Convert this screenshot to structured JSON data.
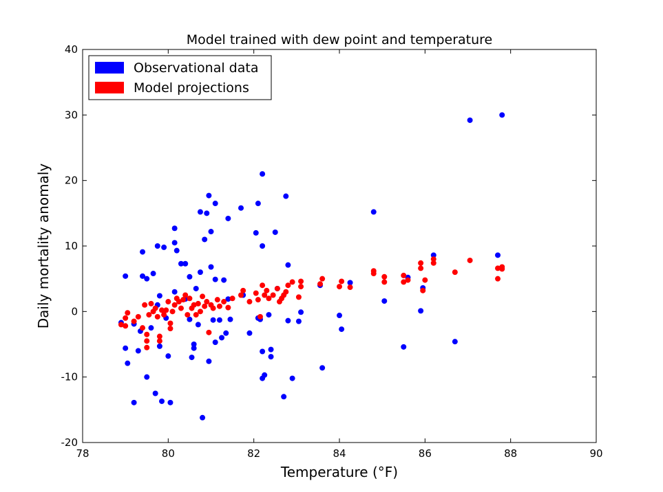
{
  "chart_data": {
    "type": "scatter",
    "title": "Model trained with dew point and temperature",
    "xlabel": "Temperature (°F)",
    "ylabel": "Daily mortality anomaly",
    "xlim": [
      78,
      90
    ],
    "ylim": [
      -20,
      40
    ],
    "xticks": [
      78,
      80,
      82,
      84,
      86,
      88,
      90
    ],
    "yticks": [
      -20,
      -10,
      0,
      10,
      20,
      30,
      40
    ],
    "grid": false,
    "legend_position": "upper-left",
    "series": [
      {
        "name": "Observational data",
        "color": "#0000ff",
        "points": [
          [
            78.9,
            -1.7
          ],
          [
            79.0,
            5.4
          ],
          [
            79.0,
            -5.6
          ],
          [
            79.05,
            -7.9
          ],
          [
            79.2,
            -13.9
          ],
          [
            79.2,
            -1.9
          ],
          [
            79.3,
            -6.0
          ],
          [
            79.35,
            -3.0
          ],
          [
            79.4,
            9.1
          ],
          [
            79.4,
            5.4
          ],
          [
            79.5,
            5.0
          ],
          [
            79.5,
            -10.0
          ],
          [
            79.6,
            -2.5
          ],
          [
            79.65,
            5.8
          ],
          [
            79.7,
            -12.5
          ],
          [
            79.75,
            10.0
          ],
          [
            79.75,
            1.0
          ],
          [
            79.8,
            2.4
          ],
          [
            79.8,
            -5.3
          ],
          [
            79.85,
            -13.7
          ],
          [
            79.9,
            9.8
          ],
          [
            79.95,
            -1.0
          ],
          [
            80.0,
            -6.8
          ],
          [
            80.05,
            -13.9
          ],
          [
            80.15,
            12.7
          ],
          [
            80.15,
            10.5
          ],
          [
            80.15,
            3.0
          ],
          [
            80.2,
            9.3
          ],
          [
            80.3,
            7.3
          ],
          [
            80.4,
            7.3
          ],
          [
            80.4,
            1.9
          ],
          [
            80.5,
            5.3
          ],
          [
            80.5,
            -1.2
          ],
          [
            80.55,
            -7.0
          ],
          [
            80.6,
            -5.0
          ],
          [
            80.6,
            -5.6
          ],
          [
            80.65,
            3.5
          ],
          [
            80.7,
            -2.0
          ],
          [
            80.75,
            15.2
          ],
          [
            80.75,
            6.0
          ],
          [
            80.8,
            -16.2
          ],
          [
            80.85,
            11.0
          ],
          [
            80.9,
            15.0
          ],
          [
            80.95,
            17.7
          ],
          [
            80.95,
            -7.6
          ],
          [
            81.0,
            12.2
          ],
          [
            81.0,
            6.8
          ],
          [
            81.05,
            -1.3
          ],
          [
            81.1,
            16.5
          ],
          [
            81.1,
            4.9
          ],
          [
            81.1,
            -4.7
          ],
          [
            81.2,
            -1.3
          ],
          [
            81.25,
            -4.0
          ],
          [
            81.3,
            4.8
          ],
          [
            81.35,
            -3.3
          ],
          [
            81.4,
            14.2
          ],
          [
            81.4,
            1.9
          ],
          [
            81.45,
            -1.2
          ],
          [
            81.7,
            15.8
          ],
          [
            81.75,
            2.5
          ],
          [
            81.9,
            -3.3
          ],
          [
            82.05,
            12.0
          ],
          [
            82.1,
            16.5
          ],
          [
            82.1,
            -1.0
          ],
          [
            82.15,
            -1.2
          ],
          [
            82.2,
            21.0
          ],
          [
            82.2,
            10.0
          ],
          [
            82.2,
            -6.1
          ],
          [
            82.2,
            -10.2
          ],
          [
            82.25,
            -9.7
          ],
          [
            82.35,
            -0.5
          ],
          [
            82.4,
            -5.8
          ],
          [
            82.4,
            -6.9
          ],
          [
            82.5,
            12.1
          ],
          [
            82.55,
            3.5
          ],
          [
            82.7,
            -13.0
          ],
          [
            82.75,
            17.6
          ],
          [
            82.8,
            7.1
          ],
          [
            82.8,
            -1.4
          ],
          [
            82.9,
            -10.2
          ],
          [
            83.05,
            -1.5
          ],
          [
            83.1,
            -0.1
          ],
          [
            83.55,
            4.0
          ],
          [
            83.6,
            -8.6
          ],
          [
            84.0,
            -0.6
          ],
          [
            84.05,
            -2.7
          ],
          [
            84.25,
            4.4
          ],
          [
            84.8,
            15.2
          ],
          [
            85.05,
            1.6
          ],
          [
            85.5,
            -5.4
          ],
          [
            85.6,
            5.2
          ],
          [
            85.9,
            0.1
          ],
          [
            85.95,
            3.6
          ],
          [
            86.2,
            8.6
          ],
          [
            86.7,
            -4.6
          ],
          [
            87.05,
            29.2
          ],
          [
            87.7,
            8.6
          ],
          [
            87.8,
            30.0
          ]
        ]
      },
      {
        "name": "Model projections",
        "color": "#ff0000",
        "points": [
          [
            78.9,
            -2.0
          ],
          [
            79.0,
            -1.0
          ],
          [
            79.05,
            -0.2
          ],
          [
            79.0,
            -2.2
          ],
          [
            79.2,
            -1.5
          ],
          [
            79.3,
            -0.8
          ],
          [
            79.4,
            -2.5
          ],
          [
            79.45,
            1.0
          ],
          [
            79.5,
            -3.5
          ],
          [
            79.5,
            -4.5
          ],
          [
            79.5,
            -5.5
          ],
          [
            79.55,
            -0.5
          ],
          [
            79.6,
            1.2
          ],
          [
            79.65,
            0.0
          ],
          [
            79.7,
            0.5
          ],
          [
            79.75,
            -0.8
          ],
          [
            79.8,
            -3.8
          ],
          [
            79.8,
            -4.5
          ],
          [
            79.85,
            0.2
          ],
          [
            79.9,
            -0.5
          ],
          [
            79.95,
            0.2
          ],
          [
            80.0,
            1.5
          ],
          [
            80.05,
            -1.8
          ],
          [
            80.05,
            -2.6
          ],
          [
            80.1,
            0.0
          ],
          [
            80.15,
            1.0
          ],
          [
            80.2,
            2.0
          ],
          [
            80.25,
            1.5
          ],
          [
            80.3,
            0.5
          ],
          [
            80.35,
            1.8
          ],
          [
            80.4,
            2.5
          ],
          [
            80.45,
            -0.5
          ],
          [
            80.5,
            2.0
          ],
          [
            80.55,
            0.5
          ],
          [
            80.6,
            1.0
          ],
          [
            80.65,
            -0.5
          ],
          [
            80.7,
            1.2
          ],
          [
            80.75,
            0.0
          ],
          [
            80.8,
            2.3
          ],
          [
            80.85,
            0.8
          ],
          [
            80.9,
            1.5
          ],
          [
            80.95,
            -3.2
          ],
          [
            81.0,
            1.0
          ],
          [
            81.05,
            0.5
          ],
          [
            81.15,
            1.8
          ],
          [
            81.2,
            0.8
          ],
          [
            81.3,
            1.5
          ],
          [
            81.4,
            0.6
          ],
          [
            81.5,
            2.0
          ],
          [
            81.7,
            2.5
          ],
          [
            81.75,
            3.2
          ],
          [
            81.9,
            1.5
          ],
          [
            82.05,
            2.8
          ],
          [
            82.1,
            1.8
          ],
          [
            82.15,
            -0.8
          ],
          [
            82.2,
            4.0
          ],
          [
            82.25,
            2.5
          ],
          [
            82.3,
            3.2
          ],
          [
            82.35,
            2.0
          ],
          [
            82.45,
            2.5
          ],
          [
            82.55,
            3.5
          ],
          [
            82.6,
            1.5
          ],
          [
            82.65,
            2.0
          ],
          [
            82.7,
            2.5
          ],
          [
            82.75,
            3.0
          ],
          [
            82.8,
            4.0
          ],
          [
            82.9,
            4.5
          ],
          [
            83.05,
            2.2
          ],
          [
            83.1,
            3.8
          ],
          [
            83.1,
            4.6
          ],
          [
            83.55,
            4.2
          ],
          [
            83.6,
            5.0
          ],
          [
            84.0,
            3.8
          ],
          [
            84.05,
            4.6
          ],
          [
            84.25,
            3.7
          ],
          [
            84.8,
            5.8
          ],
          [
            84.8,
            6.2
          ],
          [
            85.05,
            4.5
          ],
          [
            85.05,
            5.3
          ],
          [
            85.5,
            4.5
          ],
          [
            85.5,
            5.5
          ],
          [
            85.6,
            4.8
          ],
          [
            85.9,
            6.6
          ],
          [
            85.9,
            7.4
          ],
          [
            85.95,
            3.2
          ],
          [
            86.0,
            4.8
          ],
          [
            86.2,
            7.4
          ],
          [
            86.2,
            8.0
          ],
          [
            86.7,
            6.0
          ],
          [
            87.05,
            7.8
          ],
          [
            87.7,
            5.0
          ],
          [
            87.7,
            6.6
          ],
          [
            87.8,
            6.5
          ],
          [
            87.8,
            6.8
          ]
        ]
      }
    ]
  }
}
